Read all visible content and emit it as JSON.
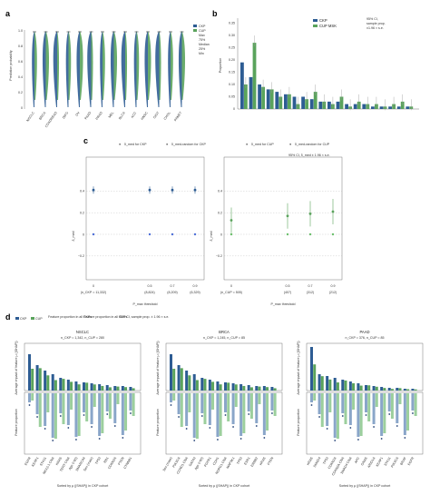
{
  "colors": {
    "ckp": "#2d5c93",
    "cup": "#5aa35c",
    "ckp_dark": "#1f3e74",
    "err": "#999999"
  },
  "panel_a": {
    "letter": "a",
    "ylabel": "Prediction probability",
    "yticks": [
      "0",
      "0.2",
      "0.4",
      "0.6",
      "0.8",
      "1.0"
    ],
    "legend": [
      "CKP",
      "CUP",
      "Max",
      "75%",
      "Median",
      "25%",
      "Min"
    ],
    "cancers": [
      "NSCLC",
      "BRCA",
      "COADREAD",
      "DIFG",
      "OV",
      "PAAD",
      "PRAD",
      "MEL",
      "BLCA",
      "ACC",
      "HNSC",
      "GIST",
      "CHOL",
      "PANET"
    ]
  },
  "panel_b": {
    "letter": "b",
    "ylabel": "Proportion",
    "yticks": [
      "0",
      "0.05",
      "0.10",
      "0.15",
      "0.20",
      "0.25",
      "0.30",
      "0.35"
    ],
    "legend": [
      "CKP",
      "CUP MSK"
    ],
    "ci_note": [
      "95% CI,",
      "sample prop.",
      "±1.96 × s.e."
    ]
  },
  "panel_c": {
    "letter": "c",
    "left_legend": [
      "δ_med for CKP",
      "δ_med-random for CKP"
    ],
    "right_legend": [
      "δ_med for CUP",
      "δ_med-random for CUP"
    ],
    "ci_note": "95% CI, δ_med ± 1.96 × s.e.",
    "ylabel": "δ_med",
    "yticks": [
      "−0.2",
      "0",
      "0.2",
      "0.4"
    ],
    "xlabel": "P_max threshold",
    "left_xticks": [
      "0",
      "0.5",
      "0.7",
      "0.9"
    ],
    "left_counts": [
      "(n_CKP = 11,332)",
      "(8,824)",
      "(8,209)",
      "(6,329)"
    ],
    "right_xticks": [
      "0",
      "0.5",
      "0.7",
      "0.9"
    ],
    "right_counts": [
      "(n_CUP = 505)",
      "(407)",
      "(312)",
      "(212)"
    ]
  },
  "panel_d": {
    "letter": "d",
    "legend": [
      "CKP",
      "CUP",
      "Feature proportion in all CKPs",
      "Feature proportion in all CUPs"
    ],
    "ci_note": "95% CI, sample prop. ± 1.96 × s.e.",
    "xlabel": "Sorted by μ (|SHAP|) in CKP cohort",
    "top_ylabel": "Average impact of feature μ (|SHAP|)",
    "bottom_ylabel": "Feature proportion",
    "subpanels": [
      {
        "title": "NSCLC",
        "counts": "n_CKP = 1,342, n_CUP = 280",
        "features": [
          "EGFR",
          "KEAP1",
          "STK11",
          "NKX2-1 CNA",
          "KRAS",
          "TERT CNA",
          "Age (<60)",
          "SMARCA4",
          "Sex (male)",
          "TP53",
          "RB1",
          "CDKN2A",
          "PTEN",
          "CTNNB1"
        ]
      },
      {
        "title": "BRCA",
        "counts": "n_CKP = 1,245, n_CUP = 85",
        "features": [
          "Sex (male)",
          "PIK3CA",
          "CCND1 CNA",
          "GATA3",
          "Age (<60)",
          "FGFR1",
          "CDH1",
          "NDRG1 CNA",
          "MAP3K1",
          "TP53",
          "ESR1",
          "ERBB2",
          "KRAS",
          "PTEN"
        ]
      },
      {
        "title": "PAAD",
        "counts": "n_CKP = 376, n_CUP = 85",
        "features": [
          "KRAS",
          "SMAD4",
          "TP53",
          "CDKN2A",
          "CDKN2A CNA",
          "SMAD4 CNA",
          "APC",
          "GNAS",
          "ARID1A",
          "KEAP1",
          "STK11",
          "PIK3CA",
          "BRAF",
          "EGFR"
        ]
      }
    ]
  }
}
